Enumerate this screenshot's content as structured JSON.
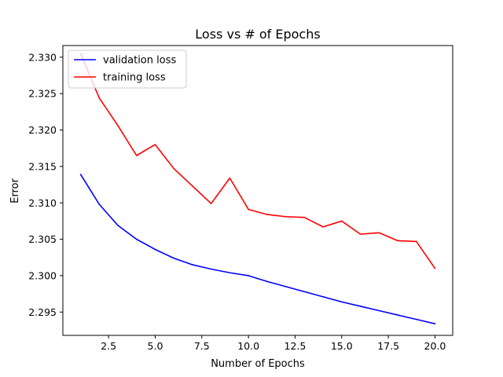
{
  "chart_data": {
    "type": "line",
    "title": "Loss vs # of Epochs",
    "xlabel": "Number of Epochs",
    "ylabel": "Error",
    "xlim": [
      0.05,
      20.95
    ],
    "ylim": [
      2.2918,
      2.3316
    ],
    "xticks": [
      2.5,
      5.0,
      7.5,
      10.0,
      12.5,
      15.0,
      17.5,
      20.0
    ],
    "xtick_labels": [
      "2.5",
      "5.0",
      "7.5",
      "10.0",
      "12.5",
      "15.0",
      "17.5",
      "20.0"
    ],
    "yticks": [
      2.295,
      2.3,
      2.305,
      2.31,
      2.315,
      2.32,
      2.325,
      2.33
    ],
    "ytick_labels": [
      "2.295",
      "2.300",
      "2.305",
      "2.310",
      "2.315",
      "2.320",
      "2.325",
      "2.330"
    ],
    "grid": false,
    "legend_position": "upper left",
    "x": [
      1,
      2,
      3,
      4,
      5,
      6,
      7,
      8,
      9,
      10,
      11,
      12,
      13,
      14,
      15,
      16,
      17,
      18,
      19,
      20
    ],
    "series": [
      {
        "name": "validation loss",
        "color": "#0000ff",
        "values": [
          2.3139,
          2.3098,
          2.3069,
          2.305,
          2.3036,
          2.3024,
          2.3015,
          2.3009,
          2.3004,
          2.3,
          2.2992,
          2.2985,
          2.2978,
          2.2971,
          2.2964,
          2.2958,
          2.2952,
          2.2946,
          2.294,
          2.2934
        ]
      },
      {
        "name": "training loss",
        "color": "#ff0000",
        "values": [
          2.3305,
          2.3244,
          2.3206,
          2.3165,
          2.318,
          2.3147,
          2.3123,
          2.3099,
          2.3134,
          2.3091,
          2.3084,
          2.3081,
          2.308,
          2.3067,
          2.3075,
          2.3057,
          2.3059,
          2.3048,
          2.3047,
          2.301
        ]
      }
    ]
  }
}
